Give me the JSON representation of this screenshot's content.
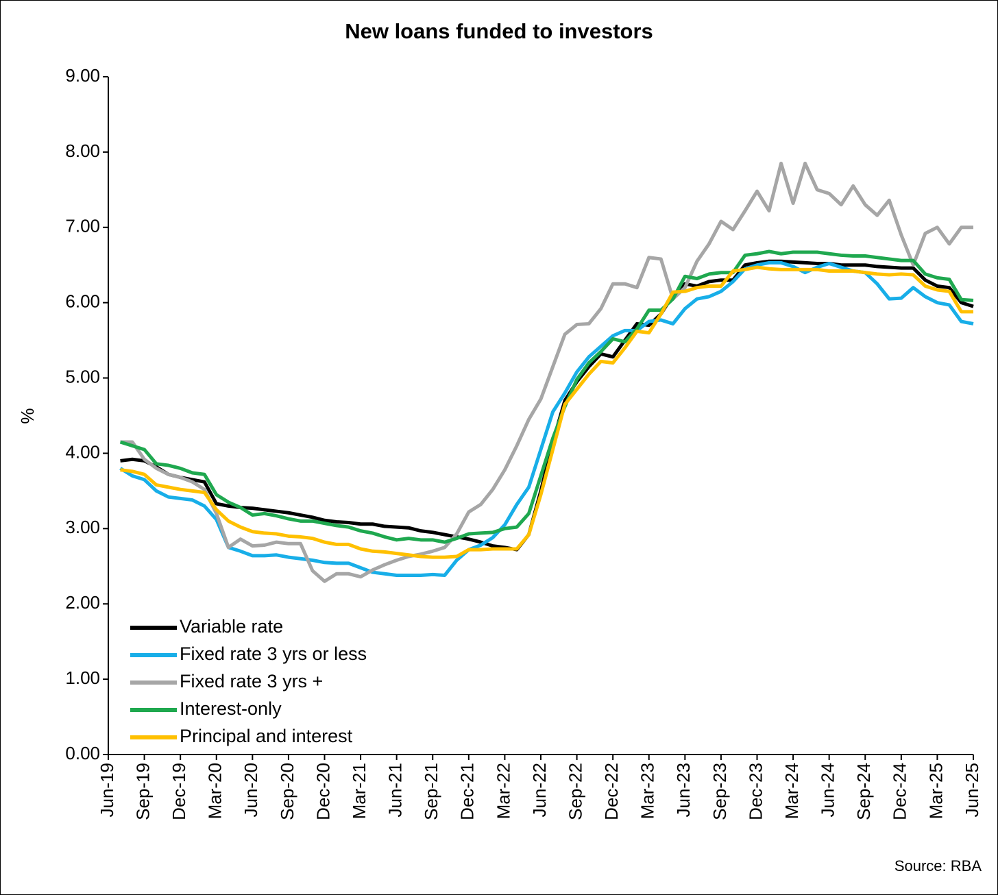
{
  "chart_data": {
    "type": "line",
    "title": "New loans funded to investors",
    "ylabel": "%",
    "source": "Source: RBA",
    "categories": [
      "Jun-19",
      null,
      null,
      "Sep-19",
      null,
      null,
      "Dec-19",
      null,
      null,
      "Mar-20",
      null,
      null,
      "Jun-20",
      null,
      null,
      "Sep-20",
      null,
      null,
      "Dec-20",
      null,
      null,
      "Mar-21",
      null,
      null,
      "Jun-21",
      null,
      null,
      "Sep-21",
      null,
      null,
      "Dec-21",
      null,
      null,
      "Mar-22",
      null,
      null,
      "Jun-22",
      null,
      null,
      "Sep-22",
      null,
      null,
      "Dec-22",
      null,
      null,
      "Mar-23",
      null,
      null,
      "Jun-23",
      null,
      null,
      "Sep-23",
      null,
      null,
      "Dec-23",
      null,
      null,
      "Mar-24",
      null,
      null,
      "Jun-24",
      null,
      null,
      "Sep-24",
      null,
      null,
      "Dec-24",
      null,
      null,
      "Mar-25",
      null,
      null,
      "Jun-25"
    ],
    "series": [
      {
        "name": "Variable rate",
        "color": "#000000",
        "values": [
          null,
          3.9,
          3.92,
          3.9,
          3.82,
          3.72,
          3.68,
          3.65,
          3.62,
          3.33,
          3.3,
          3.28,
          3.27,
          3.25,
          3.23,
          3.21,
          3.18,
          3.15,
          3.11,
          3.09,
          3.08,
          3.06,
          3.06,
          3.03,
          3.02,
          3.01,
          2.97,
          2.95,
          2.92,
          2.89,
          2.86,
          2.82,
          2.77,
          2.75,
          2.72,
          2.92,
          3.5,
          4.15,
          4.7,
          4.95,
          5.15,
          5.32,
          5.28,
          5.5,
          5.72,
          5.7,
          5.85,
          6.1,
          6.25,
          6.22,
          6.28,
          6.3,
          6.3,
          6.5,
          6.53,
          6.55,
          6.55,
          6.54,
          6.53,
          6.52,
          6.52,
          6.5,
          6.5,
          6.5,
          6.48,
          6.47,
          6.46,
          6.46,
          6.3,
          6.22,
          6.2,
          6.0,
          5.95
        ]
      },
      {
        "name": "Fixed rate 3 yrs or less",
        "color": "#18aee8",
        "values": [
          null,
          3.8,
          3.7,
          3.65,
          3.5,
          3.42,
          3.4,
          3.38,
          3.3,
          3.12,
          2.75,
          2.7,
          2.64,
          2.64,
          2.65,
          2.62,
          2.6,
          2.58,
          2.55,
          2.54,
          2.54,
          2.48,
          2.42,
          2.4,
          2.38,
          2.38,
          2.38,
          2.39,
          2.38,
          2.58,
          2.72,
          2.78,
          2.88,
          3.05,
          3.32,
          3.55,
          4.05,
          4.55,
          4.8,
          5.08,
          5.28,
          5.42,
          5.56,
          5.63,
          5.63,
          5.75,
          5.77,
          5.72,
          5.92,
          6.05,
          6.08,
          6.15,
          6.28,
          6.45,
          6.5,
          6.53,
          6.53,
          6.48,
          6.4,
          6.47,
          6.52,
          6.47,
          6.42,
          6.4,
          6.25,
          6.05,
          6.06,
          6.2,
          6.08,
          6.0,
          5.97,
          5.75,
          5.72
        ]
      },
      {
        "name": "Fixed rate 3 yrs +",
        "color": "#a6a6a6",
        "values": [
          null,
          4.15,
          4.15,
          3.92,
          3.8,
          3.72,
          3.68,
          3.62,
          3.52,
          3.2,
          2.75,
          2.86,
          2.77,
          2.78,
          2.82,
          2.8,
          2.8,
          2.44,
          2.3,
          2.4,
          2.4,
          2.36,
          2.45,
          2.52,
          2.58,
          2.63,
          2.66,
          2.7,
          2.75,
          2.93,
          3.22,
          3.32,
          3.52,
          3.78,
          4.1,
          4.45,
          4.72,
          5.15,
          5.58,
          5.71,
          5.72,
          5.92,
          6.25,
          6.25,
          6.2,
          6.6,
          6.58,
          6.05,
          6.2,
          6.55,
          6.78,
          7.08,
          6.97,
          7.22,
          7.48,
          7.22,
          7.85,
          7.32,
          7.85,
          7.5,
          7.45,
          7.3,
          7.55,
          7.3,
          7.16,
          7.36,
          6.9,
          6.5,
          6.92,
          7.0,
          6.78,
          7.0,
          7.0
        ]
      },
      {
        "name": "Interest-only",
        "color": "#1fa84f",
        "values": [
          null,
          4.15,
          4.1,
          4.05,
          3.86,
          3.84,
          3.8,
          3.74,
          3.72,
          3.45,
          3.35,
          3.28,
          3.18,
          3.2,
          3.17,
          3.13,
          3.1,
          3.1,
          3.07,
          3.04,
          3.02,
          2.97,
          2.94,
          2.89,
          2.85,
          2.87,
          2.85,
          2.85,
          2.82,
          2.87,
          2.93,
          2.94,
          2.95,
          3.0,
          3.02,
          3.2,
          3.7,
          4.2,
          4.62,
          4.98,
          5.2,
          5.35,
          5.52,
          5.48,
          5.65,
          5.9,
          5.9,
          6.05,
          6.35,
          6.32,
          6.38,
          6.4,
          6.4,
          6.63,
          6.65,
          6.68,
          6.65,
          6.67,
          6.67,
          6.67,
          6.65,
          6.63,
          6.62,
          6.62,
          6.6,
          6.58,
          6.56,
          6.56,
          6.38,
          6.33,
          6.31,
          6.04,
          6.03
        ]
      },
      {
        "name": "Principal and interest",
        "color": "#ffc000",
        "values": [
          null,
          3.78,
          3.76,
          3.72,
          3.58,
          3.55,
          3.52,
          3.5,
          3.48,
          3.25,
          3.1,
          3.02,
          2.96,
          2.94,
          2.93,
          2.9,
          2.89,
          2.87,
          2.82,
          2.79,
          2.79,
          2.73,
          2.7,
          2.69,
          2.67,
          2.65,
          2.63,
          2.62,
          2.62,
          2.63,
          2.72,
          2.72,
          2.73,
          2.73,
          2.73,
          2.92,
          3.45,
          4.05,
          4.65,
          4.85,
          5.05,
          5.22,
          5.2,
          5.4,
          5.62,
          5.6,
          5.85,
          6.14,
          6.15,
          6.2,
          6.22,
          6.22,
          6.42,
          6.44,
          6.47,
          6.45,
          6.44,
          6.44,
          6.44,
          6.44,
          6.42,
          6.42,
          6.42,
          6.4,
          6.38,
          6.37,
          6.38,
          6.37,
          6.22,
          6.17,
          6.15,
          5.88,
          5.88
        ]
      }
    ],
    "ylim": [
      0,
      9
    ],
    "yticks": [
      {
        "value": 0,
        "label": "0.00"
      },
      {
        "value": 1,
        "label": "1.00"
      },
      {
        "value": 2,
        "label": "2.00"
      },
      {
        "value": 3,
        "label": "3.00"
      },
      {
        "value": 4,
        "label": "4.00"
      },
      {
        "value": 5,
        "label": "5.00"
      },
      {
        "value": 6,
        "label": "6.00"
      },
      {
        "value": 7,
        "label": "7.00"
      },
      {
        "value": 8,
        "label": "8.00"
      },
      {
        "value": 9,
        "label": "9.00"
      }
    ],
    "legend": "lower left"
  }
}
